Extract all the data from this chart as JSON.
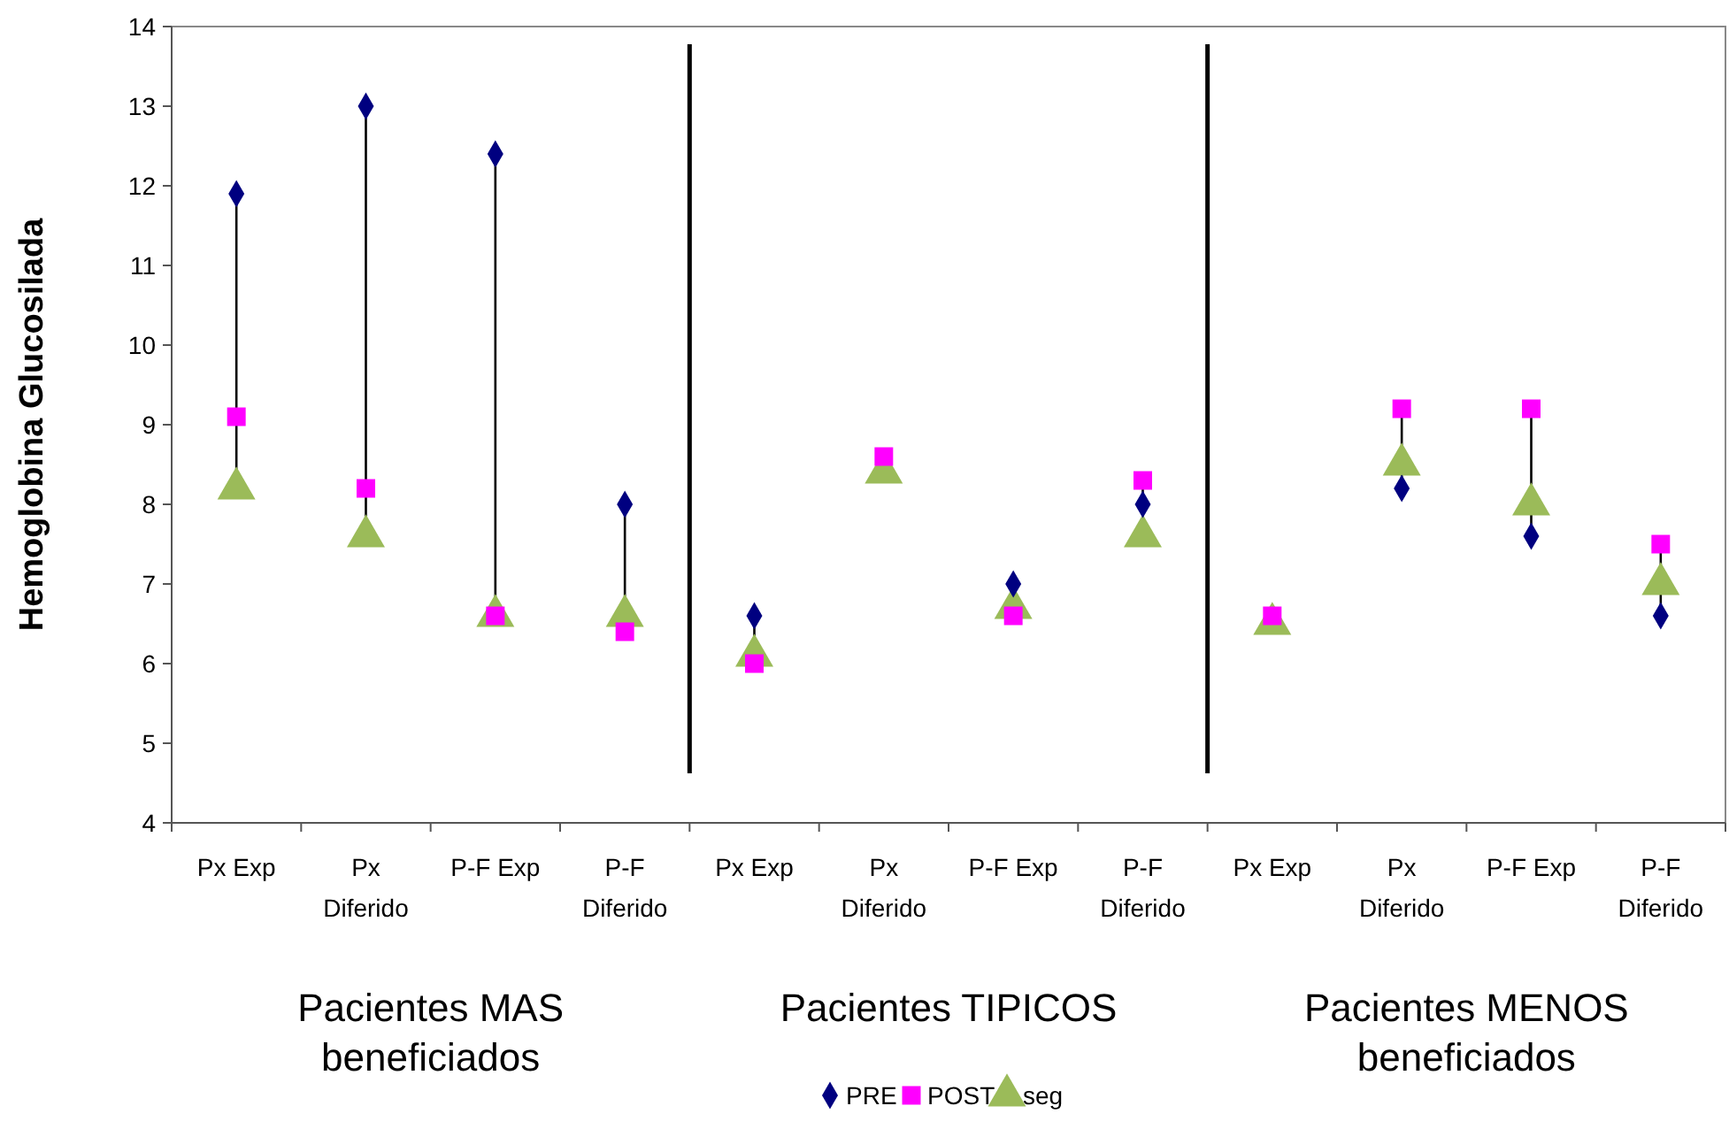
{
  "chart_data": {
    "type": "scatter",
    "ylabel": "Hemoglobina Glucosilada",
    "categories": [
      "Px Exp",
      "Px Diferido",
      "P-F Exp",
      "P-F Diferido",
      "Px Exp",
      "Px Diferido",
      "P-F Exp",
      "P-F Diferido",
      "Px Exp",
      "Px Diferido",
      "P-F Exp",
      "P-F Diferido"
    ],
    "series": [
      {
        "name": "PRE",
        "color": "#000080",
        "marker": "diamond",
        "values": [
          11.9,
          13.0,
          12.4,
          8.0,
          6.6,
          null,
          7.0,
          8.0,
          null,
          8.2,
          7.6,
          6.6
        ]
      },
      {
        "name": "POST",
        "color": "#ff00ff",
        "marker": "square",
        "values": [
          9.1,
          8.2,
          6.6,
          6.4,
          6.0,
          8.6,
          6.6,
          8.3,
          6.6,
          9.2,
          9.2,
          7.5
        ]
      },
      {
        "name": "seg",
        "color": "#9bbb59",
        "marker": "triangle",
        "values": [
          8.2,
          7.6,
          6.6,
          6.6,
          6.1,
          8.4,
          6.7,
          7.6,
          6.5,
          8.5,
          8.0,
          7.0
        ]
      }
    ],
    "ylim": [
      4,
      14
    ],
    "yticks": [
      4,
      5,
      6,
      7,
      8,
      9,
      10,
      11,
      12,
      13,
      14
    ],
    "grid": false,
    "legend": "bottom",
    "annotations": [
      "Pacientes MAS beneficiados",
      "Pacientes TIPICOS",
      "Pacientes MENOS beneficiados"
    ]
  }
}
